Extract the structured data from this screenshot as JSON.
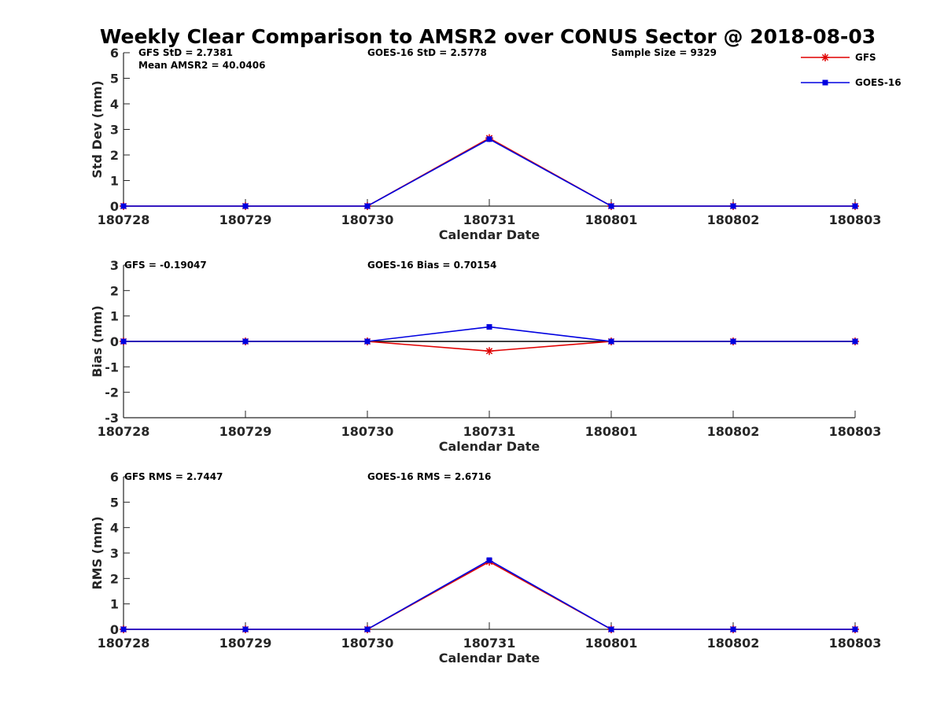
{
  "figure_title": "Weekly Clear Comparison to AMSR2 over CONUS Sector @ 2018-08-03",
  "legend": [
    {
      "name": "GFS",
      "color": "#e00000",
      "marker": "asterisk"
    },
    {
      "name": "GOES-16",
      "color": "#0000e0",
      "marker": "square"
    }
  ],
  "chart_data": [
    {
      "type": "line",
      "id": "std",
      "categories": [
        "180728",
        "180729",
        "180730",
        "180731",
        "180801",
        "180802",
        "180803"
      ],
      "xlabel": "Calendar Date",
      "ylabel": "Std Dev (mm)",
      "ylim": [
        0,
        6
      ],
      "yticks": [
        "0",
        "1",
        "2",
        "3",
        "4",
        "5",
        "6"
      ],
      "zero_line": false,
      "annotations": [
        {
          "text": "GFS StD = 2.7381",
          "anchor_category": 0
        },
        {
          "text": "Mean AMSR2 = 40.0406",
          "anchor_category": 0
        },
        {
          "text": "GOES-16 StD = 2.5778",
          "anchor_category": 2
        },
        {
          "text": "Sample Size = 9329",
          "anchor_category": 4
        }
      ],
      "series": [
        {
          "name": "GFS",
          "color": "#e00000",
          "values": [
            0,
            0,
            0,
            2.66,
            0,
            0,
            0
          ]
        },
        {
          "name": "GOES-16",
          "color": "#0000e0",
          "values": [
            0,
            0,
            0,
            2.62,
            0,
            0,
            0
          ]
        }
      ]
    },
    {
      "type": "line",
      "id": "bias",
      "categories": [
        "180728",
        "180729",
        "180730",
        "180731",
        "180801",
        "180802",
        "180803"
      ],
      "xlabel": "Calendar Date",
      "ylabel": "Bias (mm)",
      "ylim": [
        -3,
        3
      ],
      "yticks": [
        "-3",
        "-2",
        "-1",
        "0",
        "1",
        "2",
        "3"
      ],
      "zero_line": true,
      "annotations": [
        {
          "text": "GFS = -0.19047",
          "anchor_category": 0
        },
        {
          "text": "GOES-16 Bias  = 0.70154",
          "anchor_category": 2
        }
      ],
      "series": [
        {
          "name": "GFS",
          "color": "#e00000",
          "values": [
            0,
            0,
            0,
            -0.38,
            0,
            0,
            0
          ]
        },
        {
          "name": "GOES-16",
          "color": "#0000e0",
          "values": [
            0,
            0,
            0,
            0.57,
            0,
            0,
            0
          ]
        }
      ]
    },
    {
      "type": "line",
      "id": "rms",
      "categories": [
        "180728",
        "180729",
        "180730",
        "180731",
        "180801",
        "180802",
        "180803"
      ],
      "xlabel": "Calendar Date",
      "ylabel": "RMS (mm)",
      "ylim": [
        0,
        6
      ],
      "yticks": [
        "0",
        "1",
        "2",
        "3",
        "4",
        "5",
        "6"
      ],
      "zero_line": false,
      "annotations": [
        {
          "text": "GFS RMS = 2.7447",
          "anchor_category": 0
        },
        {
          "text": "GOES-16 RMS = 2.6716",
          "anchor_category": 2
        }
      ],
      "series": [
        {
          "name": "GFS",
          "color": "#e00000",
          "values": [
            0,
            0,
            0,
            2.66,
            0,
            0,
            0
          ]
        },
        {
          "name": "GOES-16",
          "color": "#0000e0",
          "values": [
            0,
            0,
            0,
            2.72,
            0,
            0,
            0
          ]
        }
      ]
    }
  ]
}
